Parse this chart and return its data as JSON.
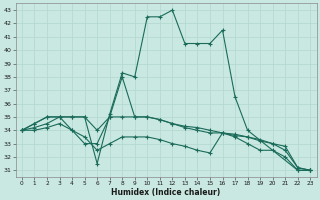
{
  "xlabel": "Humidex (Indice chaleur)",
  "xlim": [
    -0.5,
    23.5
  ],
  "ylim": [
    30.5,
    43.5
  ],
  "yticks": [
    31,
    32,
    33,
    34,
    35,
    36,
    37,
    38,
    39,
    40,
    41,
    42,
    43
  ],
  "xticks": [
    0,
    1,
    2,
    3,
    4,
    5,
    6,
    7,
    8,
    9,
    10,
    11,
    12,
    13,
    14,
    15,
    16,
    17,
    18,
    19,
    20,
    21,
    22,
    23
  ],
  "bg_color": "#c9e8e1",
  "grid_color": "#b2d8cf",
  "line_color": "#1a6b5a",
  "lines": [
    {
      "x": [
        0,
        1,
        2,
        3,
        4,
        5,
        6,
        7,
        8,
        9,
        10,
        11,
        12,
        13,
        14,
        15,
        16,
        17,
        18,
        22,
        23
      ],
      "y": [
        34,
        34.5,
        35,
        35,
        35,
        35,
        31.5,
        35.2,
        38.3,
        38.0,
        42.5,
        42.5,
        43.0,
        40.5,
        40.5,
        40.5,
        41.5,
        36.5,
        34.0,
        31.0,
        31.0
      ]
    },
    {
      "x": [
        0,
        1,
        2,
        3,
        4,
        5,
        6,
        7,
        8,
        9,
        10,
        11,
        12,
        13,
        14,
        15,
        16,
        17,
        18,
        19,
        20,
        21,
        22,
        23
      ],
      "y": [
        34,
        34.5,
        35,
        35,
        34,
        33,
        33,
        35,
        38.0,
        35,
        35,
        34.8,
        34.5,
        34.3,
        34.2,
        34.0,
        33.8,
        33.6,
        33.5,
        33.3,
        33.0,
        32.8,
        31.2,
        31.0
      ]
    },
    {
      "x": [
        0,
        1,
        2,
        3,
        4,
        5,
        6,
        7,
        8,
        9,
        10,
        11,
        12,
        13,
        14,
        15,
        16,
        17,
        18,
        19,
        20,
        21,
        22,
        23
      ],
      "y": [
        34,
        34.2,
        34.5,
        35,
        35,
        35,
        34,
        35,
        35,
        35,
        35,
        34.8,
        34.5,
        34.2,
        34.0,
        33.8,
        33.8,
        33.7,
        33.5,
        33.2,
        33.0,
        32.5,
        31.2,
        31.0
      ]
    },
    {
      "x": [
        0,
        1,
        2,
        3,
        4,
        5,
        6,
        7,
        8,
        9,
        10,
        11,
        12,
        13,
        14,
        15,
        16,
        17,
        18,
        19,
        20,
        21,
        22,
        23
      ],
      "y": [
        34,
        34.0,
        34.2,
        34.5,
        34,
        33.5,
        32.5,
        33.0,
        33.5,
        33.5,
        33.5,
        33.3,
        33.0,
        32.8,
        32.5,
        32.3,
        33.8,
        33.5,
        33.0,
        32.5,
        32.5,
        32.0,
        31.0,
        31.0
      ]
    }
  ]
}
